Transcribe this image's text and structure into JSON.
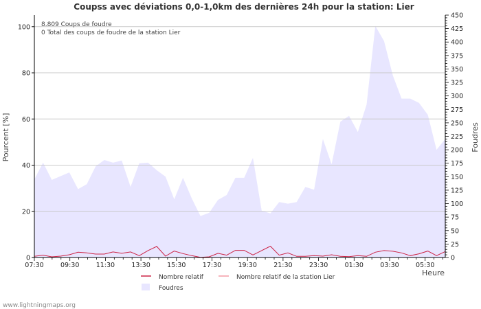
{
  "chart_data": {
    "type": "area",
    "title": "Coupss avec déviations 0,0-1,0km des dernières 24h pour la station: Lier",
    "xlabel": "Heure",
    "ylabel_left": "Pourcent   [%]",
    "ylabel_right": "Foudres",
    "ylim_left": [
      0,
      105
    ],
    "ylim_right": [
      0,
      450
    ],
    "left_ticks": [
      0,
      20,
      40,
      60,
      80,
      100
    ],
    "right_ticks": [
      0,
      25,
      50,
      75,
      100,
      125,
      150,
      175,
      200,
      225,
      250,
      275,
      300,
      325,
      350,
      375,
      400,
      425,
      450
    ],
    "x_tick_labels": [
      "07:30",
      "09:30",
      "11:30",
      "13:30",
      "15:30",
      "17:30",
      "19:30",
      "21:30",
      "23:30",
      "01:30",
      "03:30",
      "05:30"
    ],
    "info_lines": [
      "8.809  Coups de foudre",
      "0 Total des coups de foudre de la station Lier"
    ],
    "series": [
      {
        "name": "Foudres",
        "axis": "right",
        "color": "#e8e6ff",
        "values": [
          145,
          176,
          144,
          151,
          158,
          127,
          136,
          169,
          181,
          176,
          180,
          131,
          175,
          176,
          162,
          150,
          108,
          148,
          110,
          77,
          83,
          107,
          116,
          148,
          148,
          185,
          87,
          82,
          103,
          100,
          103,
          131,
          126,
          220,
          173,
          252,
          263,
          233,
          284,
          430,
          402,
          338,
          295,
          295,
          287,
          265,
          200,
          220
        ]
      },
      {
        "name": "Nombre relatif",
        "axis": "left",
        "color": "#cc2244",
        "values": [
          0.5,
          1,
          0.3,
          0.6,
          1.2,
          2.3,
          2,
          1.5,
          1.5,
          2.4,
          1.8,
          2.4,
          0.8,
          3,
          4.8,
          0.6,
          2.8,
          1.7,
          0.8,
          0.1,
          0.3,
          1.8,
          1,
          3.1,
          3.1,
          1.1,
          3,
          4.9,
          1,
          2,
          0.5,
          0.5,
          0.8,
          0.6,
          1.2,
          0.5,
          0.4,
          0.8,
          0.5,
          2.3,
          3,
          2.7,
          2,
          0.8,
          1.6,
          2.8,
          0.8,
          2.6
        ]
      },
      {
        "name": "Nombre relatif de la station Lier",
        "axis": "left",
        "color": "#f49aa5",
        "values": []
      }
    ],
    "legend": [
      "Nombre relatif",
      "Nombre relatif de la station Lier",
      "Foudres"
    ]
  },
  "footer": "www.lightningmaps.org"
}
